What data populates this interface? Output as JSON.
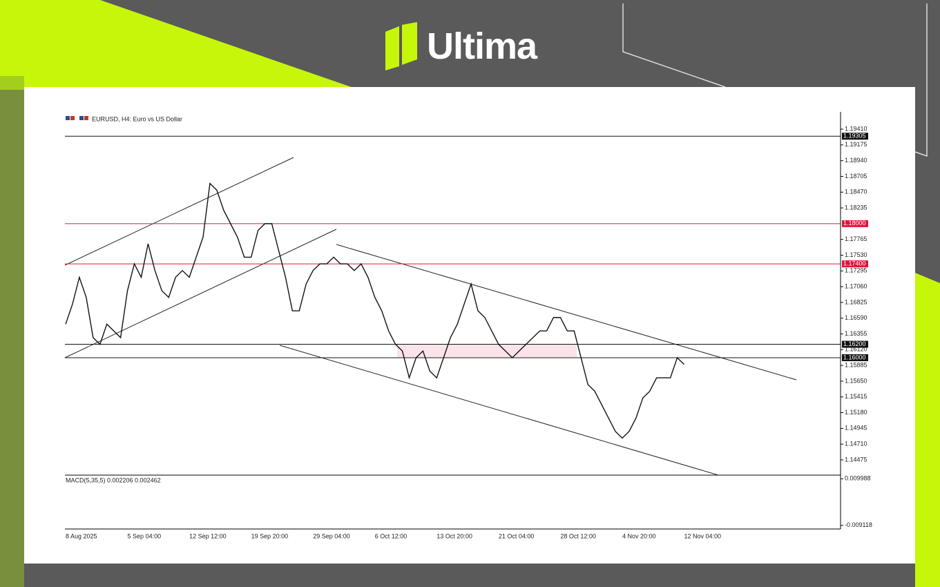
{
  "brand": "Ultima",
  "chart_data": {
    "type": "line",
    "title": "EURUSD, H4:  Euro vs US Dollar",
    "categories": [
      "8 Aug 2025",
      null,
      null,
      null,
      null,
      null,
      null,
      null,
      null,
      "5 Sep 04:00",
      null,
      null,
      null,
      null,
      null,
      null,
      null,
      null,
      "12 Sep 12:00",
      null,
      null,
      null,
      null,
      null,
      null,
      null,
      null,
      "19 Sep 20:00",
      null,
      null,
      null,
      null,
      null,
      null,
      null,
      null,
      "29 Sep 04:00",
      null,
      null,
      null,
      null,
      null,
      null,
      null,
      null,
      "6 Oct 12:00",
      null,
      null,
      null,
      null,
      null,
      null,
      null,
      null,
      "13 Oct 20:00",
      null,
      null,
      null,
      null,
      null,
      null,
      null,
      null,
      "21 Oct 04:00",
      null,
      null,
      null,
      null,
      null,
      null,
      null,
      null,
      "28 Oct 12:00",
      null,
      null,
      null,
      null,
      null,
      null,
      null,
      null,
      "4 Nov 20:00",
      null,
      null,
      null,
      null,
      null,
      null,
      null,
      null,
      "12 Nov 04:00"
    ],
    "series": [
      {
        "name": "EURUSD",
        "color": "#111111",
        "values": [
          1.165,
          1.168,
          1.172,
          1.169,
          1.163,
          1.162,
          1.165,
          1.164,
          1.163,
          1.17,
          1.174,
          1.172,
          1.177,
          1.173,
          1.17,
          1.169,
          1.172,
          1.173,
          1.172,
          1.175,
          1.178,
          1.186,
          1.185,
          1.182,
          1.18,
          1.178,
          1.175,
          1.175,
          1.179,
          1.18,
          1.18,
          1.176,
          1.172,
          1.167,
          1.167,
          1.171,
          1.173,
          1.174,
          1.174,
          1.175,
          1.174,
          1.174,
          1.173,
          1.174,
          1.172,
          1.169,
          1.167,
          1.164,
          1.162,
          1.161,
          1.157,
          1.16,
          1.161,
          1.158,
          1.157,
          1.16,
          1.163,
          1.165,
          1.168,
          1.171,
          1.167,
          1.166,
          1.164,
          1.162,
          1.161,
          1.16,
          1.161,
          1.162,
          1.163,
          1.164,
          1.164,
          1.166,
          1.166,
          1.164,
          1.164,
          1.16,
          1.156,
          1.155,
          1.153,
          1.151,
          1.149,
          1.148,
          1.149,
          1.151,
          1.154,
          1.155,
          1.157,
          1.157,
          1.157,
          1.16,
          1.159
        ]
      }
    ],
    "ylim": [
      1.14248,
      1.19637
    ],
    "yticks": [
      {
        "value": 1.1941,
        "label": "1.19410"
      },
      1.19175,
      {
        "value": 1.1894,
        "label": "1.18940"
      },
      1.18705,
      {
        "value": 1.1847,
        "label": "1.18470"
      },
      1.18235,
      1.17765,
      {
        "value": 1.1753,
        "label": "1.17530"
      },
      1.17295,
      {
        "value": 1.1706,
        "label": "1.17060"
      },
      1.16825,
      {
        "value": 1.1659,
        "label": "1.16590"
      },
      1.16355,
      {
        "value": 1.1612,
        "label": "1.16120"
      },
      1.15885,
      {
        "value": 1.1565,
        "label": "1.15650"
      },
      1.15415,
      {
        "value": 1.1518,
        "label": "1.15180"
      },
      1.14945,
      {
        "value": 1.1471,
        "label": "1.14710"
      },
      1.14475
    ],
    "levels": [
      {
        "value": 1.19305,
        "label": "1.19305",
        "color": "#111111"
      },
      {
        "value": 1.18,
        "label": "1.18000",
        "color": "#e0143c"
      },
      {
        "value": 1.174,
        "label": "1.17400",
        "color": "#e0143c"
      },
      {
        "value": 1.162,
        "label": "1.16200",
        "color": "#111111"
      },
      {
        "value": 1.16,
        "label": "1.16000",
        "color": "#111111"
      }
    ],
    "macd_title": "MACD(5,35,5) 0.002206 0.002462",
    "y2lim": [
      -0.0106,
      0.0115
    ],
    "y2ticks": [
      0.009988,
      -0.009118
    ]
  }
}
